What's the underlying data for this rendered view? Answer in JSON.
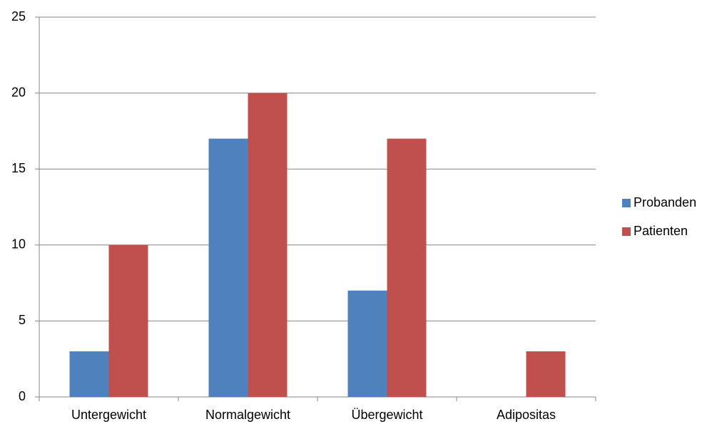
{
  "chart_data": {
    "type": "bar",
    "categories": [
      "Untergewicht",
      "Normalgewicht",
      "Übergewicht",
      "Adipositas"
    ],
    "series": [
      {
        "name": "Probanden",
        "color": "#4f81bd",
        "values": [
          3,
          17,
          7,
          0
        ]
      },
      {
        "name": "Patienten",
        "color": "#c0504d",
        "values": [
          10,
          20,
          17,
          3
        ]
      }
    ],
    "ylim": [
      0,
      25
    ],
    "yticks": [
      0,
      5,
      10,
      15,
      20,
      25
    ],
    "grid": true,
    "legend": "right"
  }
}
